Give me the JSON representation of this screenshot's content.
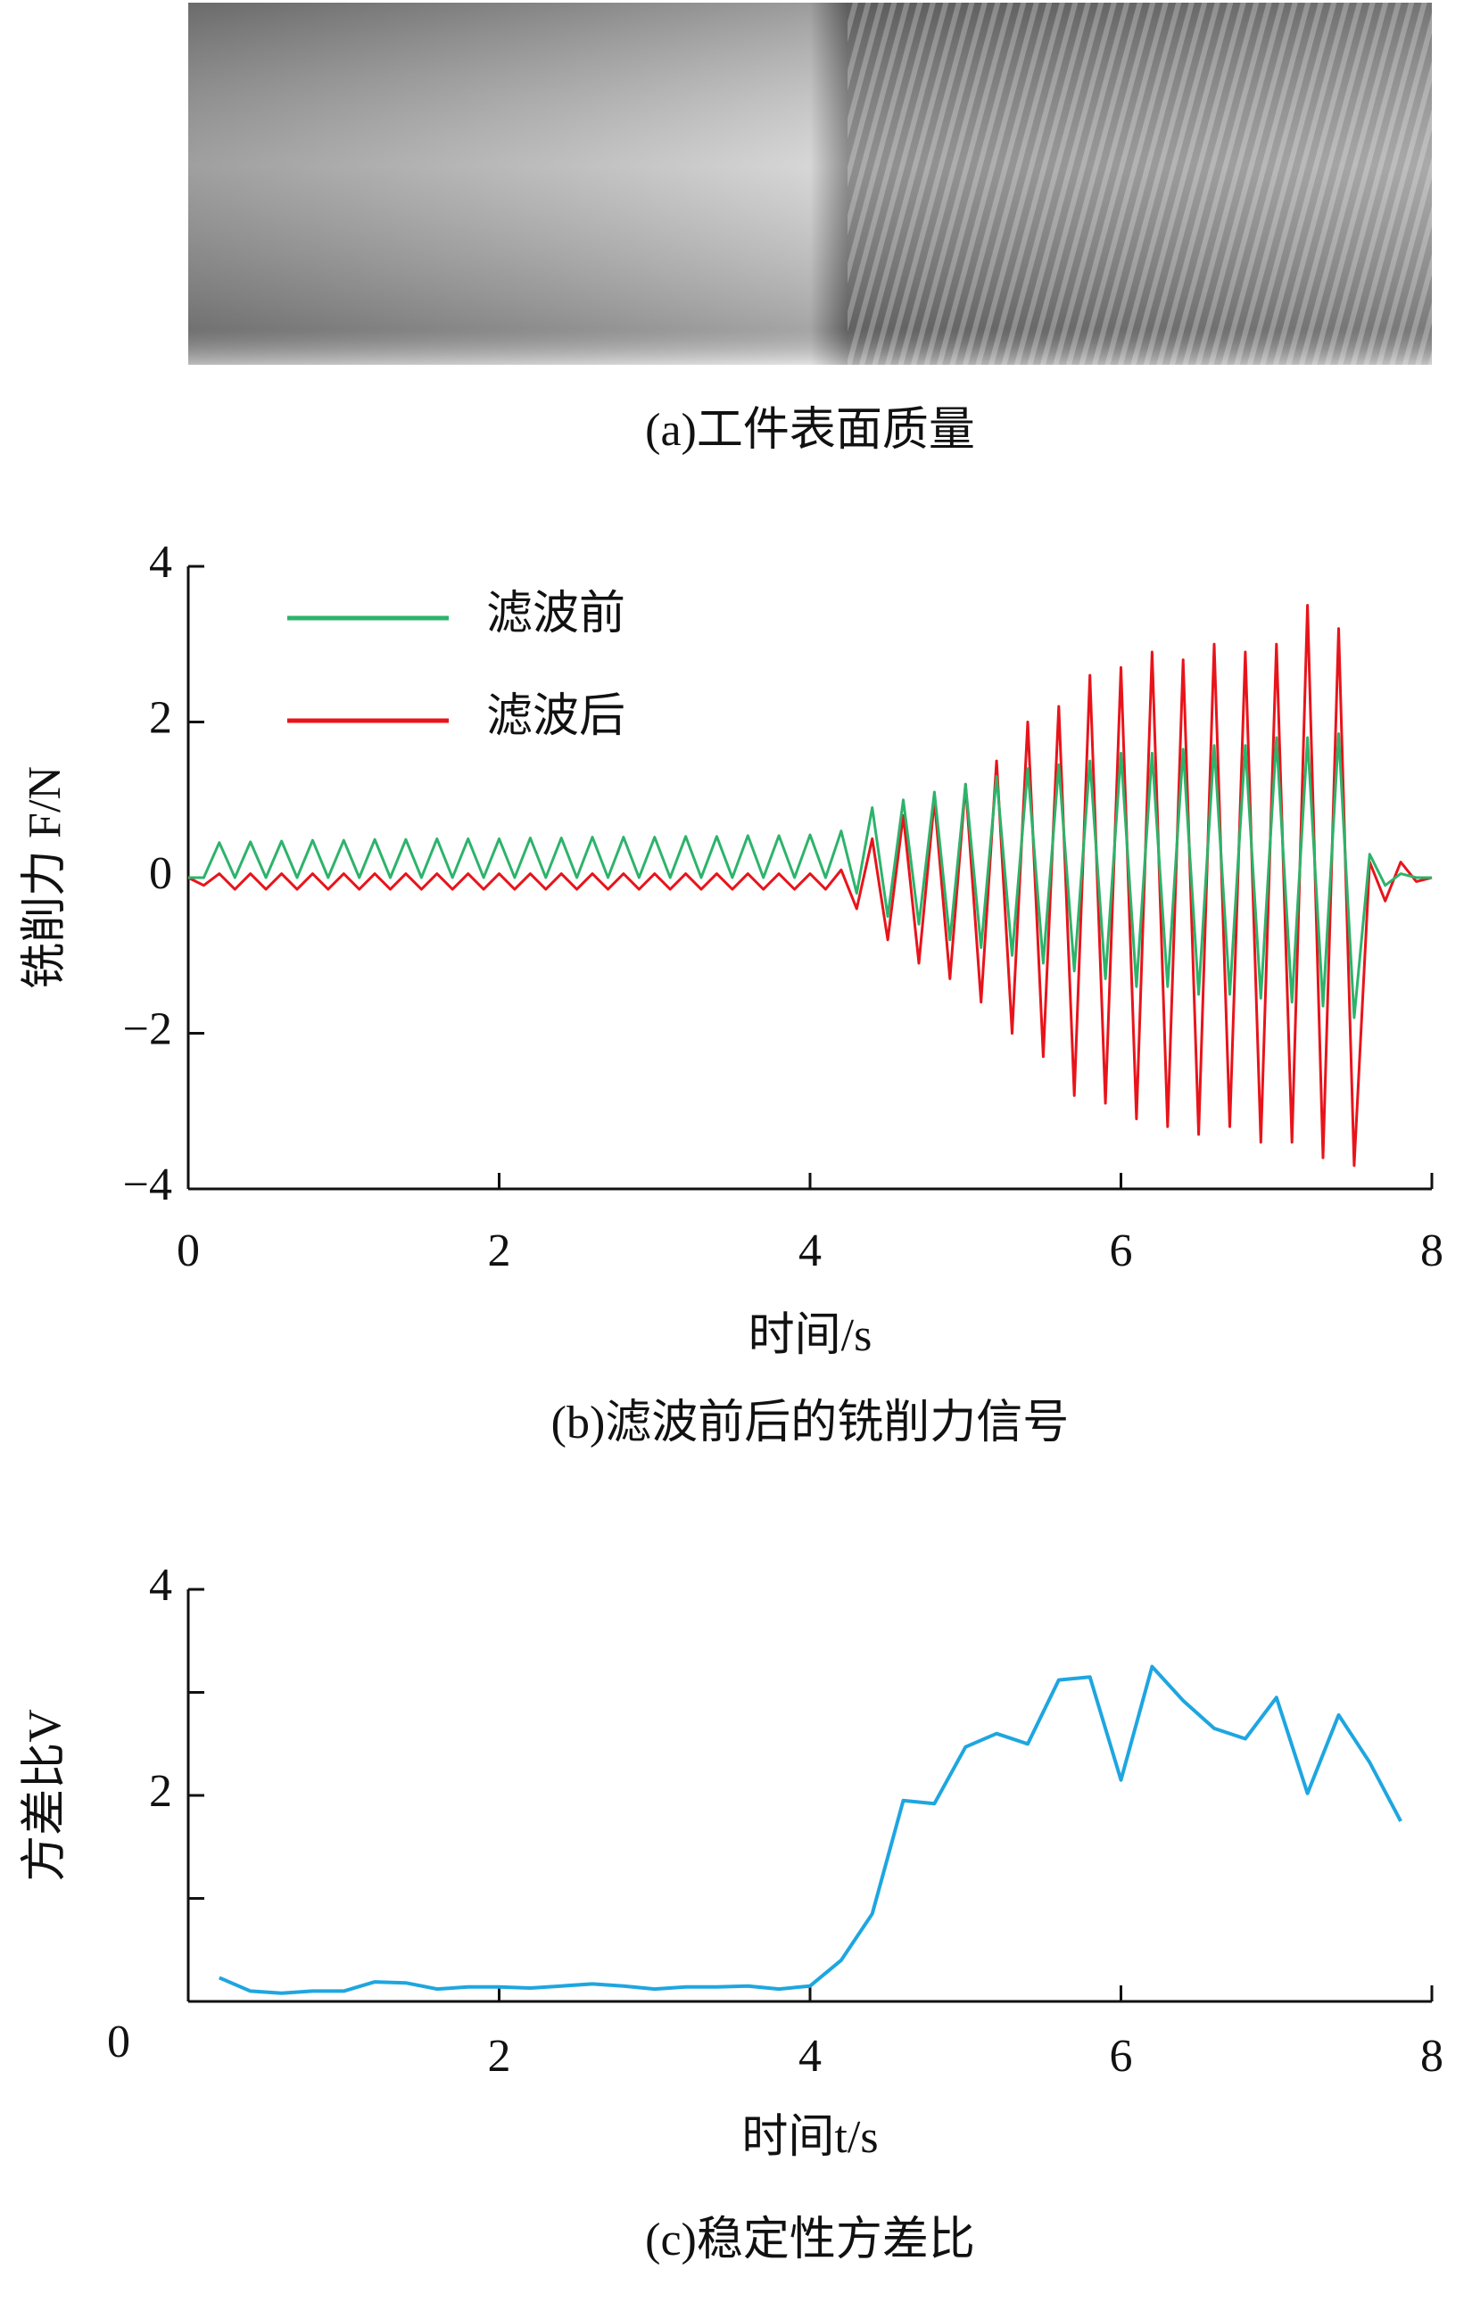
{
  "image_caption": "(a)工件表面质量",
  "chart_data": [
    {
      "type": "line",
      "caption": "(b)滤波前后的铣削力信号",
      "xlabel": "时间/s",
      "ylabel": "铣削力 F/N",
      "x": [
        0,
        0.1,
        0.2,
        0.3,
        0.4,
        0.5,
        0.6,
        0.7,
        0.8,
        0.9,
        1,
        1.1,
        1.2,
        1.3,
        1.4,
        1.5,
        1.6,
        1.7,
        1.8,
        1.9,
        2,
        2.1,
        2.2,
        2.3,
        2.4,
        2.5,
        2.6,
        2.7,
        2.8,
        2.9,
        3,
        3.1,
        3.2,
        3.3,
        3.4,
        3.5,
        3.6,
        3.7,
        3.8,
        3.9,
        4,
        4.1,
        4.2,
        4.3,
        4.4,
        4.5,
        4.6,
        4.7,
        4.8,
        4.9,
        5,
        5.1,
        5.2,
        5.3,
        5.4,
        5.5,
        5.6,
        5.7,
        5.8,
        5.9,
        6,
        6.1,
        6.2,
        6.3,
        6.4,
        6.5,
        6.6,
        6.7,
        6.8,
        6.9,
        7,
        7.1,
        7.2,
        7.3,
        7.4,
        7.5,
        7.6,
        7.7,
        7.8,
        7.9,
        8
      ],
      "series": [
        {
          "name": "滤波后",
          "color": "#e8141b",
          "values": [
            0,
            -0.1,
            0.05,
            -0.15,
            0.05,
            -0.15,
            0.05,
            -0.15,
            0.05,
            -0.15,
            0.05,
            -0.15,
            0.05,
            -0.15,
            0.05,
            -0.15,
            0.05,
            -0.15,
            0.05,
            -0.15,
            0.05,
            -0.15,
            0.05,
            -0.15,
            0.05,
            -0.15,
            0.05,
            -0.15,
            0.05,
            -0.15,
            0.05,
            -0.15,
            0.05,
            -0.15,
            0.05,
            -0.15,
            0.05,
            -0.15,
            0.05,
            -0.15,
            0.05,
            -0.15,
            0.1,
            -0.4,
            0.5,
            -0.8,
            0.8,
            -1.1,
            1.0,
            -1.3,
            1.2,
            -1.6,
            1.5,
            -2.0,
            2.0,
            -2.3,
            2.2,
            -2.8,
            2.6,
            -2.9,
            2.7,
            -3.1,
            2.9,
            -3.2,
            2.8,
            -3.3,
            3.0,
            -3.2,
            2.9,
            -3.4,
            3.0,
            -3.4,
            3.5,
            -3.6,
            3.2,
            -3.7,
            0.2,
            -0.3,
            0.2,
            -0.05,
            0
          ]
        },
        {
          "name": "滤波前",
          "color": "#2db36b",
          "values": [
            0,
            0,
            0.45,
            0,
            0.46,
            0,
            0.47,
            0,
            0.48,
            0,
            0.48,
            0,
            0.49,
            0,
            0.49,
            0,
            0.5,
            0,
            0.5,
            0,
            0.5,
            0,
            0.51,
            0,
            0.51,
            0,
            0.52,
            0,
            0.52,
            0,
            0.52,
            0,
            0.53,
            0,
            0.53,
            0,
            0.54,
            0,
            0.54,
            0,
            0.55,
            0,
            0.6,
            -0.2,
            0.9,
            -0.5,
            1.0,
            -0.6,
            1.1,
            -0.8,
            1.2,
            -0.9,
            1.3,
            -1.0,
            1.4,
            -1.1,
            1.45,
            -1.2,
            1.5,
            -1.3,
            1.6,
            -1.4,
            1.6,
            -1.4,
            1.65,
            -1.5,
            1.7,
            -1.5,
            1.7,
            -1.55,
            1.8,
            -1.6,
            1.8,
            -1.65,
            1.85,
            -1.8,
            0.3,
            -0.1,
            0.05,
            0,
            0
          ]
        }
      ],
      "legend_order": [
        1,
        0
      ],
      "xlim": [
        0,
        8
      ],
      "xticks": [
        0,
        2,
        4,
        6,
        8
      ],
      "ylim": [
        -4,
        4
      ],
      "yticks": [
        {
          "value": -4,
          "label": "−4"
        },
        {
          "value": -2,
          "label": "−2"
        },
        0,
        2,
        4
      ]
    },
    {
      "type": "line",
      "caption": "(c)稳定性方差比",
      "xlabel": "时间t/s",
      "ylabel": "方差比V",
      "x": [
        0.2,
        0.4,
        0.6,
        0.8,
        1.0,
        1.2,
        1.4,
        1.6,
        1.8,
        2.0,
        2.2,
        2.4,
        2.6,
        2.8,
        3.0,
        3.2,
        3.4,
        3.6,
        3.8,
        4.0,
        4.2,
        4.4,
        4.6,
        4.8,
        5.0,
        5.2,
        5.4,
        5.6,
        5.8,
        6.0,
        6.2,
        6.4,
        6.6,
        6.8,
        7.0,
        7.2,
        7.4,
        7.6,
        7.8
      ],
      "series": [
        {
          "color": "#1ea6e0",
          "values": [
            0.23,
            0.1,
            0.08,
            0.1,
            0.1,
            0.19,
            0.18,
            0.12,
            0.14,
            0.14,
            0.13,
            0.15,
            0.17,
            0.15,
            0.12,
            0.14,
            0.14,
            0.15,
            0.12,
            0.15,
            0.4,
            0.85,
            1.95,
            1.92,
            2.47,
            2.6,
            2.5,
            3.12,
            3.15,
            2.15,
            3.25,
            2.92,
            2.65,
            2.55,
            2.95,
            2.02,
            2.78,
            2.32,
            1.75
          ]
        }
      ],
      "xlim": [
        0,
        8
      ],
      "xticks": [
        0,
        2,
        4,
        6,
        8
      ],
      "ylim": [
        0,
        4
      ],
      "yticks": [
        0,
        2,
        4
      ],
      "yminor": [
        1,
        3
      ]
    }
  ]
}
